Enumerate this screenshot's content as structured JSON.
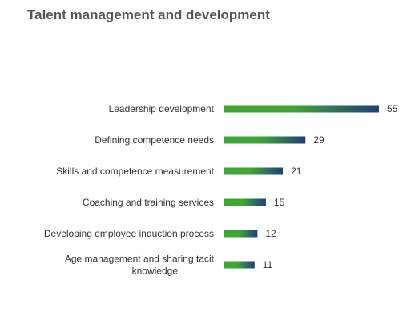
{
  "chart_data": {
    "type": "bar",
    "orientation": "horizontal",
    "title": "Talent management and development",
    "categories": [
      "Leadership development",
      "Defining competence needs",
      "Skills and competence measurement",
      "Coaching and training services",
      "Developing employee induction process",
      "Age management and sharing tacit knowledge"
    ],
    "category_lines": [
      [
        "Leadership development"
      ],
      [
        "Defining competence needs"
      ],
      [
        "Skills and competence measurement"
      ],
      [
        "Coaching and training services"
      ],
      [
        "Developing employee induction process"
      ],
      [
        "Age management and sharing tacit",
        "knowledge"
      ]
    ],
    "values": [
      55,
      29,
      21,
      15,
      12,
      11
    ],
    "xlim": [
      0,
      55
    ],
    "grid": false,
    "legend": "none",
    "bar_gradient": [
      "#3fa535",
      "#1f3f7a"
    ],
    "data_labels": true
  }
}
